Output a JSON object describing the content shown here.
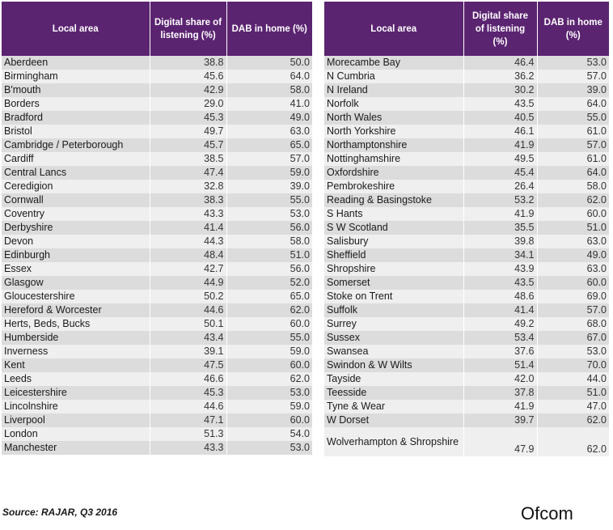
{
  "headers": {
    "local_area": "Local area",
    "digital_share": "Digital share of listening (%)",
    "dab_in_home": "DAB in home (%)"
  },
  "left_rows": [
    {
      "area": "Aberdeen",
      "digital": "38.8",
      "dab": "50.0"
    },
    {
      "area": "Birmingham",
      "digital": "45.6",
      "dab": "64.0"
    },
    {
      "area": "B'mouth",
      "digital": "42.9",
      "dab": "58.0"
    },
    {
      "area": "Borders",
      "digital": "29.0",
      "dab": "41.0"
    },
    {
      "area": "Bradford",
      "digital": "45.3",
      "dab": "49.0"
    },
    {
      "area": "Bristol",
      "digital": "49.7",
      "dab": "63.0"
    },
    {
      "area": "Cambridge / Peterborough",
      "digital": "45.7",
      "dab": "65.0"
    },
    {
      "area": "Cardiff",
      "digital": "38.5",
      "dab": "57.0"
    },
    {
      "area": "Central Lancs",
      "digital": "47.4",
      "dab": "59.0"
    },
    {
      "area": "Ceredigion",
      "digital": "32.8",
      "dab": "39.0"
    },
    {
      "area": "Cornwall",
      "digital": "38.3",
      "dab": "55.0"
    },
    {
      "area": "Coventry",
      "digital": "43.3",
      "dab": "53.0"
    },
    {
      "area": "Derbyshire",
      "digital": "41.4",
      "dab": "56.0"
    },
    {
      "area": "Devon",
      "digital": "44.3",
      "dab": "58.0"
    },
    {
      "area": "Edinburgh",
      "digital": "48.4",
      "dab": "51.0"
    },
    {
      "area": "Essex",
      "digital": "42.7",
      "dab": "56.0"
    },
    {
      "area": "Glasgow",
      "digital": "44.9",
      "dab": "52.0"
    },
    {
      "area": "Gloucestershire",
      "digital": "50.2",
      "dab": "65.0"
    },
    {
      "area": "Hereford & Worcester",
      "digital": "44.6",
      "dab": "62.0"
    },
    {
      "area": "Herts, Beds, Bucks",
      "digital": "50.1",
      "dab": "60.0"
    },
    {
      "area": "Humberside",
      "digital": "43.4",
      "dab": "55.0"
    },
    {
      "area": "Inverness",
      "digital": "39.1",
      "dab": "59.0"
    },
    {
      "area": "Kent",
      "digital": "47.5",
      "dab": "60.0"
    },
    {
      "area": "Leeds",
      "digital": "46.6",
      "dab": "62.0"
    },
    {
      "area": "Leicestershire",
      "digital": "45.3",
      "dab": "53.0"
    },
    {
      "area": "Lincolnshire",
      "digital": "44.6",
      "dab": "59.0"
    },
    {
      "area": "Liverpool",
      "digital": "47.1",
      "dab": "60.0"
    },
    {
      "area": "London",
      "digital": "51.3",
      "dab": "54.0"
    },
    {
      "area": "Manchester",
      "digital": "43.3",
      "dab": "53.0"
    }
  ],
  "right_rows": [
    {
      "area": "Morecambe Bay",
      "digital": "46.4",
      "dab": "53.0"
    },
    {
      "area": "N Cumbria",
      "digital": "36.2",
      "dab": "57.0"
    },
    {
      "area": "N Ireland",
      "digital": "30.2",
      "dab": "39.0"
    },
    {
      "area": "Norfolk",
      "digital": "43.5",
      "dab": "64.0"
    },
    {
      "area": "North Wales",
      "digital": "40.5",
      "dab": "55.0"
    },
    {
      "area": "North Yorkshire",
      "digital": "46.1",
      "dab": "61.0"
    },
    {
      "area": "Northamptonshire",
      "digital": "41.9",
      "dab": "57.0"
    },
    {
      "area": "Nottinghamshire",
      "digital": "49.5",
      "dab": "61.0"
    },
    {
      "area": "Oxfordshire",
      "digital": "45.4",
      "dab": "64.0"
    },
    {
      "area": "Pembrokeshire",
      "digital": "26.4",
      "dab": "58.0"
    },
    {
      "area": "Reading & Basingstoke",
      "digital": "53.2",
      "dab": "62.0"
    },
    {
      "area": "S Hants",
      "digital": "41.9",
      "dab": "60.0"
    },
    {
      "area": "S W Scotland",
      "digital": "35.5",
      "dab": "51.0"
    },
    {
      "area": "Salisbury",
      "digital": "39.8",
      "dab": "63.0"
    },
    {
      "area": "Sheffield",
      "digital": "34.1",
      "dab": "49.0"
    },
    {
      "area": "Shropshire",
      "digital": "43.9",
      "dab": "63.0"
    },
    {
      "area": "Somerset",
      "digital": "43.5",
      "dab": "60.0"
    },
    {
      "area": "Stoke on Trent",
      "digital": "48.6",
      "dab": "69.0"
    },
    {
      "area": "Suffolk",
      "digital": "41.4",
      "dab": "57.0"
    },
    {
      "area": "Surrey",
      "digital": "49.2",
      "dab": "68.0"
    },
    {
      "area": "Sussex",
      "digital": "53.4",
      "dab": "67.0"
    },
    {
      "area": "Swansea",
      "digital": "37.6",
      "dab": "53.0"
    },
    {
      "area": "Swindon & W Wilts",
      "digital": "51.4",
      "dab": "70.0"
    },
    {
      "area": "Tayside",
      "digital": "42.0",
      "dab": "44.0"
    },
    {
      "area": "Teesside",
      "digital": "37.8",
      "dab": "51.0"
    },
    {
      "area": "Tyne & Wear",
      "digital": "41.9",
      "dab": "47.0"
    },
    {
      "area": "W Dorset",
      "digital": "39.7",
      "dab": "62.0"
    },
    {
      "area": "Wolverhampton & Shropshire",
      "digital": "47.9",
      "dab": "62.0",
      "tall": true
    }
  ],
  "footer": {
    "source": "Source: RAJAR, Q3 2016",
    "brand": "Ofcom"
  }
}
